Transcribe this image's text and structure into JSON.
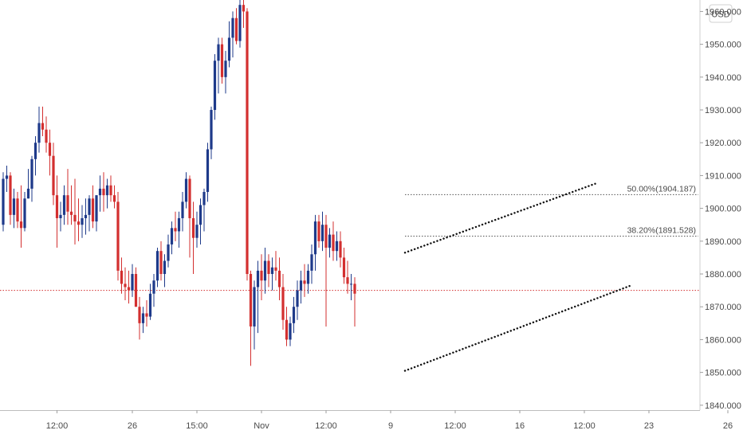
{
  "chart_data": {
    "type": "candlestick",
    "currency_label": "USD",
    "y_axis": {
      "ticks": [
        "1960.000",
        "1950.000",
        "1940.000",
        "1930.000",
        "1920.000",
        "1910.000",
        "1900.000",
        "1890.000",
        "1880.000",
        "1870.000",
        "1860.000",
        "1850.000",
        "1840.000"
      ],
      "tick_values": [
        1960,
        1950,
        1940,
        1930,
        1920,
        1910,
        1900,
        1890,
        1880,
        1870,
        1860,
        1850,
        1840
      ],
      "range": [
        1838.5,
        1963.5
      ]
    },
    "x_axis": {
      "labels": [
        "12:00",
        "26",
        "15:00",
        "Nov",
        "12:00",
        "9",
        "12:00",
        "16",
        "12:00",
        "23",
        "26"
      ],
      "label_positions": [
        15,
        36,
        54,
        72,
        90,
        108,
        126,
        144,
        162,
        180,
        202
      ]
    },
    "colors": {
      "up": "#1e3a8a",
      "down": "#d32f2f",
      "price_line": "#d32f2f",
      "fib_line": "#555555",
      "trend_line": "#111111"
    },
    "current_price": 1875.0,
    "fib_levels": [
      {
        "label": "50.00%(1904.187)",
        "value": 1904.187,
        "start_index": 112
      },
      {
        "label": "38.20%(1891.528)",
        "value": 1891.528,
        "start_index": 112
      }
    ],
    "trendlines": [
      {
        "from": [
          112,
          1886.5
        ],
        "to": [
          165,
          1907.5
        ]
      },
      {
        "from": [
          112,
          1850.5
        ],
        "to": [
          175,
          1876.5
        ]
      }
    ],
    "candles": [
      [
        1895,
        1911,
        1893,
        1909
      ],
      [
        1909,
        1913,
        1905,
        1910
      ],
      [
        1910,
        1911,
        1895,
        1898
      ],
      [
        1898,
        1906,
        1894,
        1903
      ],
      [
        1903,
        1905,
        1894,
        1896
      ],
      [
        1896,
        1907,
        1888,
        1894
      ],
      [
        1894,
        1905,
        1893,
        1903
      ],
      [
        1903,
        1912,
        1903,
        1906
      ],
      [
        1906,
        1916,
        1902,
        1915
      ],
      [
        1915,
        1922,
        1910,
        1920
      ],
      [
        1920,
        1931,
        1917,
        1926
      ],
      [
        1926,
        1931,
        1922,
        1924
      ],
      [
        1924,
        1928,
        1917,
        1920
      ],
      [
        1920,
        1924,
        1910,
        1916
      ],
      [
        1916,
        1920,
        1901,
        1904
      ],
      [
        1904,
        1910,
        1888,
        1897
      ],
      [
        1897,
        1902,
        1893,
        1898
      ],
      [
        1898,
        1907,
        1895,
        1904
      ],
      [
        1904,
        1912,
        1895,
        1899
      ],
      [
        1899,
        1907,
        1895,
        1898
      ],
      [
        1898,
        1909,
        1889,
        1896
      ],
      [
        1896,
        1903,
        1890,
        1895
      ],
      [
        1895,
        1901,
        1891,
        1897
      ],
      [
        1897,
        1903,
        1892,
        1898
      ],
      [
        1898,
        1904,
        1893,
        1903
      ],
      [
        1903,
        1907,
        1894,
        1896
      ],
      [
        1896,
        1904,
        1893,
        1904
      ],
      [
        1904,
        1910,
        1899,
        1906
      ],
      [
        1906,
        1911,
        1899,
        1904
      ],
      [
        1904,
        1909,
        1900,
        1907
      ],
      [
        1907,
        1910,
        1902,
        1904
      ],
      [
        1904,
        1907,
        1900,
        1902
      ],
      [
        1902,
        1905,
        1878,
        1881
      ],
      [
        1881,
        1885,
        1874,
        1877
      ],
      [
        1877,
        1882,
        1872,
        1876
      ],
      [
        1876,
        1881,
        1871,
        1875
      ],
      [
        1875,
        1883,
        1873,
        1880
      ],
      [
        1880,
        1882,
        1870,
        1870
      ],
      [
        1870,
        1873,
        1860,
        1865
      ],
      [
        1865,
        1870,
        1862,
        1868
      ],
      [
        1868,
        1872,
        1864,
        1867
      ],
      [
        1867,
        1877,
        1866,
        1874
      ],
      [
        1874,
        1880,
        1870,
        1878
      ],
      [
        1878,
        1888,
        1876,
        1887
      ],
      [
        1887,
        1890,
        1878,
        1880
      ],
      [
        1880,
        1886,
        1876,
        1884
      ],
      [
        1884,
        1892,
        1882,
        1889
      ],
      [
        1889,
        1896,
        1886,
        1894
      ],
      [
        1894,
        1899,
        1890,
        1893
      ],
      [
        1893,
        1899,
        1888,
        1897
      ],
      [
        1897,
        1905,
        1893,
        1902
      ],
      [
        1902,
        1911,
        1900,
        1909
      ],
      [
        1909,
        1910,
        1885,
        1897
      ],
      [
        1897,
        1902,
        1880,
        1891
      ],
      [
        1891,
        1899,
        1888,
        1895
      ],
      [
        1895,
        1903,
        1889,
        1901
      ],
      [
        1901,
        1906,
        1893,
        1905
      ],
      [
        1905,
        1920,
        1902,
        1918
      ],
      [
        1918,
        1931,
        1915,
        1930
      ],
      [
        1930,
        1947,
        1927,
        1945
      ],
      [
        1945,
        1952,
        1935,
        1950
      ],
      [
        1950,
        1952,
        1938,
        1940
      ],
      [
        1940,
        1948,
        1935,
        1945
      ],
      [
        1945,
        1957,
        1943,
        1952
      ],
      [
        1952,
        1960,
        1946,
        1958
      ],
      [
        1958,
        1961,
        1950,
        1951
      ],
      [
        1951,
        1965,
        1949,
        1962
      ],
      [
        1962,
        1965,
        1955,
        1960
      ],
      [
        1960,
        1961,
        1878,
        1880
      ],
      [
        1880,
        1881,
        1852,
        1864
      ],
      [
        1864,
        1878,
        1857,
        1876
      ],
      [
        1876,
        1884,
        1862,
        1881
      ],
      [
        1881,
        1886,
        1872,
        1878
      ],
      [
        1878,
        1888,
        1874,
        1884
      ],
      [
        1884,
        1886,
        1876,
        1880
      ],
      [
        1880,
        1885,
        1875,
        1882
      ],
      [
        1882,
        1887,
        1878,
        1881
      ],
      [
        1881,
        1885,
        1872,
        1876
      ],
      [
        1876,
        1880,
        1863,
        1866
      ],
      [
        1866,
        1870,
        1858,
        1860
      ],
      [
        1860,
        1867,
        1858,
        1865
      ],
      [
        1865,
        1873,
        1862,
        1870
      ],
      [
        1870,
        1878,
        1866,
        1875
      ],
      [
        1875,
        1881,
        1871,
        1878
      ],
      [
        1878,
        1883,
        1873,
        1877
      ],
      [
        1877,
        1883,
        1874,
        1881
      ],
      [
        1881,
        1889,
        1877,
        1886
      ],
      [
        1886,
        1898,
        1881,
        1896
      ],
      [
        1896,
        1898,
        1888,
        1890
      ],
      [
        1890,
        1899,
        1887,
        1895
      ],
      [
        1895,
        1898,
        1864,
        1888
      ],
      [
        1888,
        1894,
        1885,
        1892
      ],
      [
        1892,
        1896,
        1884,
        1887
      ],
      [
        1887,
        1893,
        1884,
        1890
      ],
      [
        1890,
        1893,
        1882,
        1885
      ],
      [
        1885,
        1888,
        1877,
        1879
      ],
      [
        1879,
        1884,
        1874,
        1877
      ],
      [
        1877,
        1880,
        1872,
        1877
      ],
      [
        1877,
        1879,
        1864,
        1874
      ]
    ]
  }
}
